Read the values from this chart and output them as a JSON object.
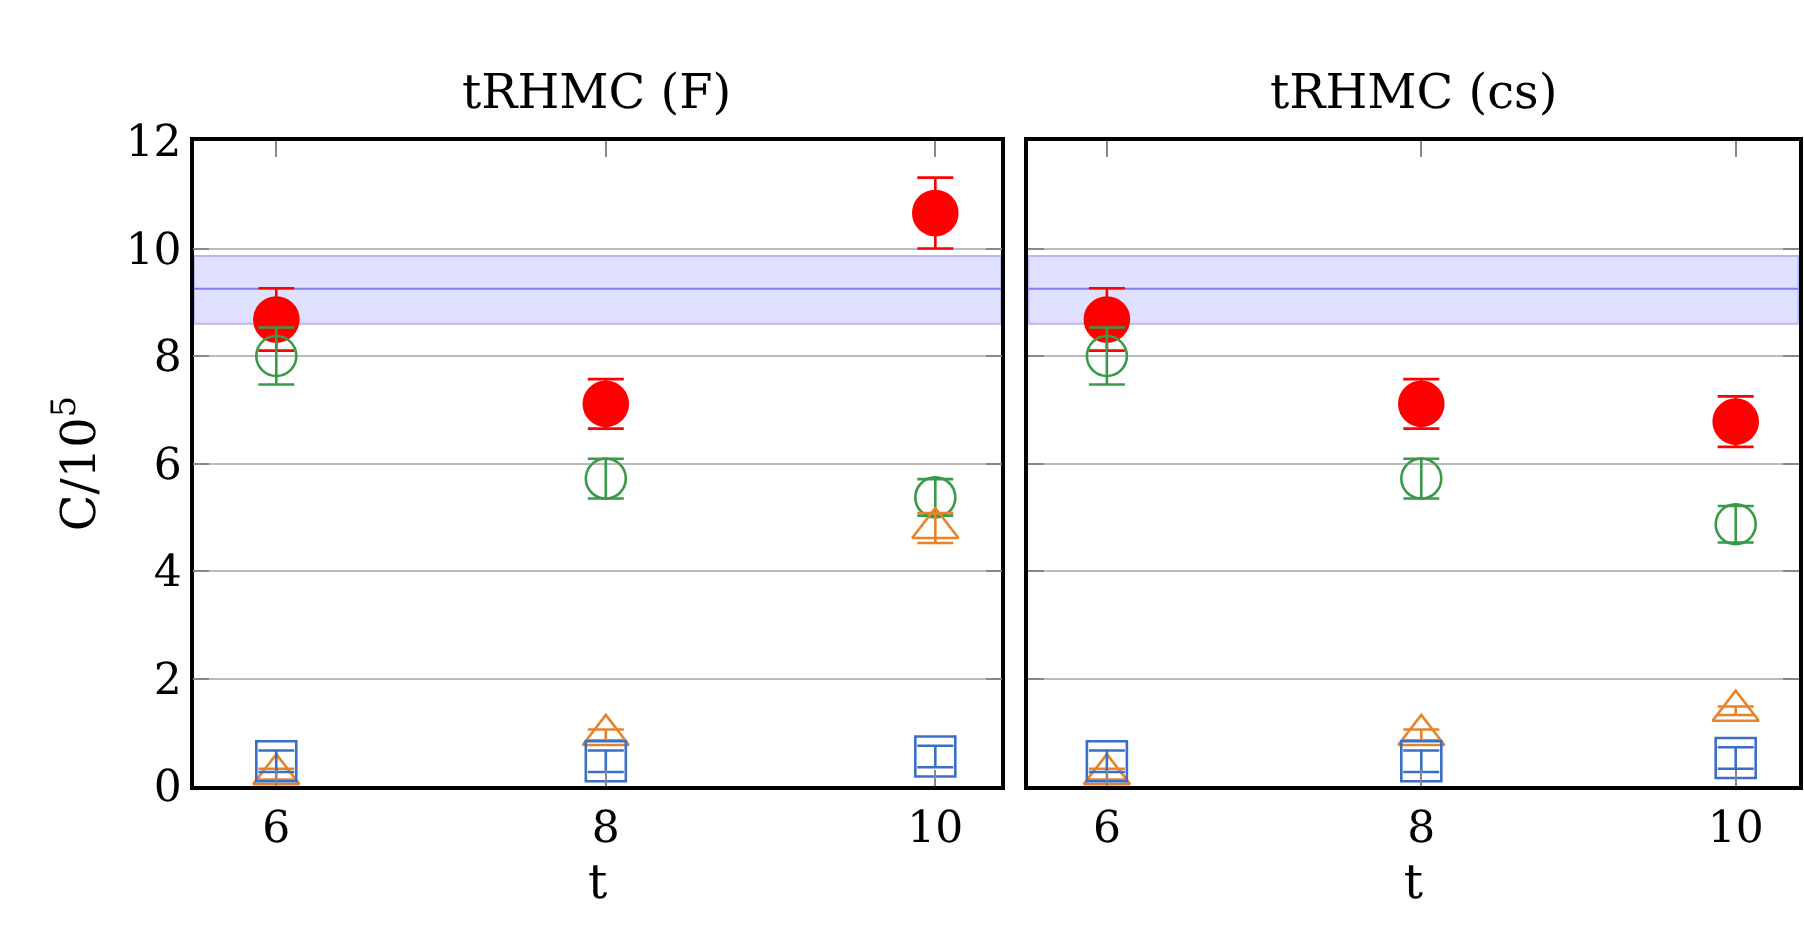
{
  "chart_data": [
    {
      "type": "scatter",
      "title": "tRHMC (F)",
      "xlabel": "t",
      "ylabel": "C/10$^{5}$",
      "x": [
        6,
        8,
        10
      ],
      "xlim": [
        5.5,
        10.4
      ],
      "xticks": [
        6,
        8,
        10
      ],
      "ylim": [
        0,
        12
      ],
      "yticks": [
        0,
        2,
        4,
        6,
        8,
        10,
        12
      ],
      "grid": "y",
      "legend": false,
      "bands": [
        {
          "axis": "y",
          "from": 8.6,
          "to": 9.86,
          "color": "#e0e0ff"
        }
      ],
      "ref_lines": [
        {
          "axis": "y",
          "value": 9.25,
          "color": "#8080f0"
        }
      ],
      "series": [
        {
          "color": "#ff0000",
          "marker": "circle",
          "values": [
            8.68,
            7.11,
            10.66
          ],
          "errors": [
            0.58,
            0.46,
            0.66
          ]
        },
        {
          "color": "#3a9a4a",
          "marker": "circle",
          "values": [
            8.0,
            5.72,
            5.37
          ],
          "errors": [
            0.53,
            0.37,
            0.34
          ]
        },
        {
          "color": "#e8832a",
          "marker": "triangle",
          "values": [
            0.22,
            0.95,
            4.8
          ],
          "errors": [
            0.1,
            0.1,
            0.28
          ]
        },
        {
          "color": "#3a6fc4",
          "marker": "square",
          "values": [
            0.46,
            0.46,
            0.55
          ],
          "errors": [
            0.2,
            0.2,
            0.2
          ]
        }
      ]
    },
    {
      "type": "scatter",
      "title": "tRHMC (cs)",
      "xlabel": "t",
      "x": [
        6,
        8,
        10
      ],
      "xlim": [
        5.5,
        10.4
      ],
      "xticks": [
        6,
        8,
        10
      ],
      "ylim": [
        0,
        12
      ],
      "yticks": [
        0,
        2,
        4,
        6,
        8,
        10,
        12
      ],
      "grid": "y",
      "legend": false,
      "tick_labels": "x",
      "bands": [
        {
          "axis": "y",
          "from": 8.6,
          "to": 9.86,
          "color": "#e0e0ff"
        }
      ],
      "ref_lines": [
        {
          "axis": "y",
          "value": 9.25,
          "color": "#8080f0"
        }
      ],
      "series": [
        {
          "color": "#ff0000",
          "marker": "circle",
          "values": [
            8.68,
            7.11,
            6.78
          ],
          "errors": [
            0.58,
            0.46,
            0.47
          ]
        },
        {
          "color": "#3a9a4a",
          "marker": "circle",
          "values": [
            8.0,
            5.72,
            4.87
          ],
          "errors": [
            0.53,
            0.37,
            0.34
          ]
        },
        {
          "color": "#e8832a",
          "marker": "triangle",
          "values": [
            0.22,
            0.95,
            1.4
          ],
          "errors": [
            0.1,
            0.1,
            0.08
          ]
        },
        {
          "color": "#3a6fc4",
          "marker": "square",
          "values": [
            0.46,
            0.46,
            0.52
          ],
          "errors": [
            0.2,
            0.2,
            0.2
          ]
        }
      ]
    }
  ]
}
